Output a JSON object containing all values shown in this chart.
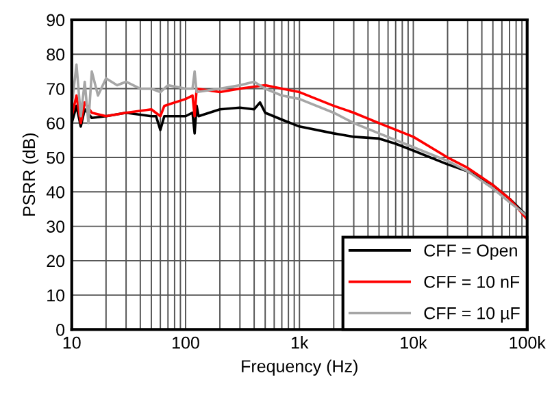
{
  "chart_data": {
    "type": "line",
    "xlabel": "Frequency (Hz)",
    "ylabel": "PSRR (dB)",
    "log": "x",
    "grid": true,
    "legend": "bottom right",
    "line_style": "solid",
    "marker": "none",
    "xlim": [
      10,
      100000
    ],
    "xticks": [
      10,
      100,
      {
        "value": 1000,
        "label": "1k"
      },
      {
        "value": 10000,
        "label": "10k"
      },
      {
        "value": 100000,
        "label": "100k"
      }
    ],
    "ylim": [
      0,
      90
    ],
    "yticks": [
      0,
      10,
      20,
      30,
      40,
      50,
      60,
      70,
      80,
      90
    ],
    "series": [
      {
        "name": "CFF = Open",
        "color": "#000000",
        "x": [
          10,
          11,
          12,
          13,
          15,
          20,
          30,
          50,
          55,
          60,
          65,
          100,
          115,
          120,
          125,
          130,
          200,
          300,
          400,
          450,
          500,
          700,
          1000,
          2000,
          3000,
          5000,
          7000,
          10000,
          20000,
          30000,
          50000,
          70000,
          100000
        ],
        "values": [
          60,
          65,
          59,
          64,
          61.5,
          62,
          63,
          62,
          62,
          58,
          62,
          62,
          63,
          57,
          65,
          62,
          64,
          64.5,
          64,
          66,
          63,
          61,
          59,
          57,
          56,
          55.5,
          54,
          52,
          48,
          46,
          42,
          38,
          33
        ]
      },
      {
        "name": "CFF = 10 nF",
        "color": "#ff0000",
        "x": [
          10,
          11,
          12,
          13,
          15,
          20,
          30,
          50,
          60,
          65,
          100,
          115,
          120,
          125,
          200,
          300,
          500,
          700,
          1000,
          2000,
          3000,
          5000,
          10000,
          20000,
          30000,
          50000,
          70000,
          100000
        ],
        "values": [
          62,
          68,
          60,
          66,
          63,
          62,
          63,
          64,
          62,
          65,
          67,
          68,
          62,
          70,
          69,
          70,
          71,
          70,
          69,
          65,
          63,
          60,
          56,
          50,
          47,
          42,
          38,
          32
        ]
      },
      {
        "name": "CFF = 10 µF",
        "color": "#a6a6a6",
        "x": [
          10,
          11,
          12,
          13,
          14,
          15,
          17,
          20,
          25,
          30,
          40,
          50,
          60,
          70,
          100,
          115,
          120,
          125,
          200,
          300,
          400,
          500,
          700,
          1000,
          2000,
          3000,
          5000,
          10000,
          20000,
          30000,
          50000,
          70000,
          100000
        ],
        "values": [
          65,
          77,
          62,
          72,
          60,
          75,
          68,
          73,
          71,
          72,
          70,
          70,
          69,
          71,
          70,
          70,
          75,
          69,
          70,
          71,
          72,
          70,
          68,
          67,
          63,
          60,
          57,
          53,
          49,
          46,
          41,
          37,
          33
        ]
      }
    ]
  }
}
